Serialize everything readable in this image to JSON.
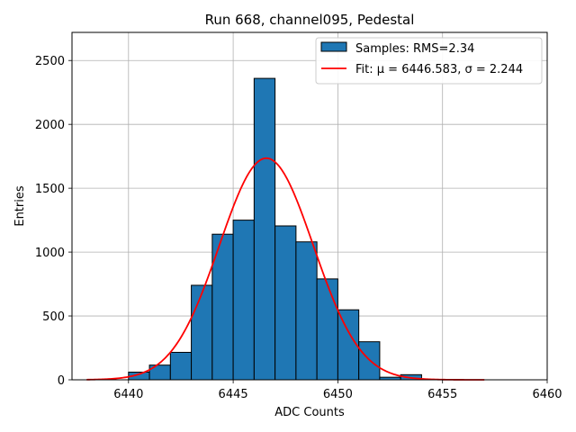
{
  "chart_data": {
    "type": "bar",
    "title": "Run 668, channel095, Pedestal",
    "xlabel": "ADC Counts",
    "ylabel": "Entries",
    "xlim": [
      6437.3,
      6460
    ],
    "ylim": [
      0,
      2720
    ],
    "xticks": [
      6440,
      6445,
      6450,
      6455,
      6460
    ],
    "yticks": [
      0,
      500,
      1000,
      1500,
      2000,
      2500
    ],
    "grid": true,
    "legend_position": "top-right",
    "histogram": {
      "name": "Samples: RMS=2.34",
      "color": "#1f77b4",
      "edge_color": "#000000",
      "bin_edges": [
        6440,
        6441,
        6442,
        6443,
        6444,
        6445,
        6446,
        6447,
        6448,
        6449,
        6450,
        6451,
        6452,
        6453,
        6454
      ],
      "counts": [
        60,
        115,
        215,
        740,
        1140,
        1250,
        2360,
        1205,
        1080,
        790,
        548,
        298,
        20,
        40
      ]
    },
    "fit": {
      "name_prefix": "Fit: ",
      "mu_label": "μ = 6446.583",
      "sigma_label": "σ = 2.244",
      "mu": 6446.583,
      "sigma": 2.244,
      "amplitude": 1735,
      "x_range": [
        6438,
        6457
      ],
      "color": "#ff0000"
    }
  }
}
